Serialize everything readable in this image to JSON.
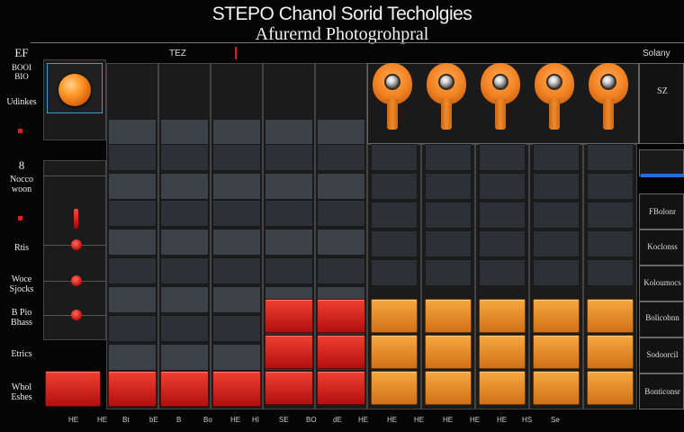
{
  "header": {
    "title_line1": "STEPO Chanol Sorid Techolgies",
    "title_line2": "Afurernd Photogrohpral",
    "top_center_label": "TEZ",
    "top_right_label": "Solany",
    "mid_right_label": "SZ"
  },
  "left_labels": [
    "EF",
    "BOOI BIO",
    "Udinkes",
    "8",
    "Nocco woon",
    "Rtis",
    "Woce Sjocks",
    "B Pio Bhass",
    "Etrics",
    "Whol Eshes"
  ],
  "right_labels": [
    "FBolonr",
    "Koclonss",
    "Koloumocs",
    "Bolicobnn",
    "Sodoorcil",
    "Bonticonsr"
  ],
  "bottom_labels": [
    "HE",
    "HE",
    "Bt",
    "bE",
    "B",
    "Bo",
    "HE",
    "HI",
    "SE",
    "BO",
    "dE",
    "HE",
    "HE",
    "HE",
    "HE",
    "HE",
    "HE",
    "HS",
    "Se"
  ],
  "colors": {
    "accent_orange": "#f08a2a",
    "fader_red": "#d02020",
    "panel_dark": "#222222",
    "blue_indicator": "#2a6ae0"
  }
}
